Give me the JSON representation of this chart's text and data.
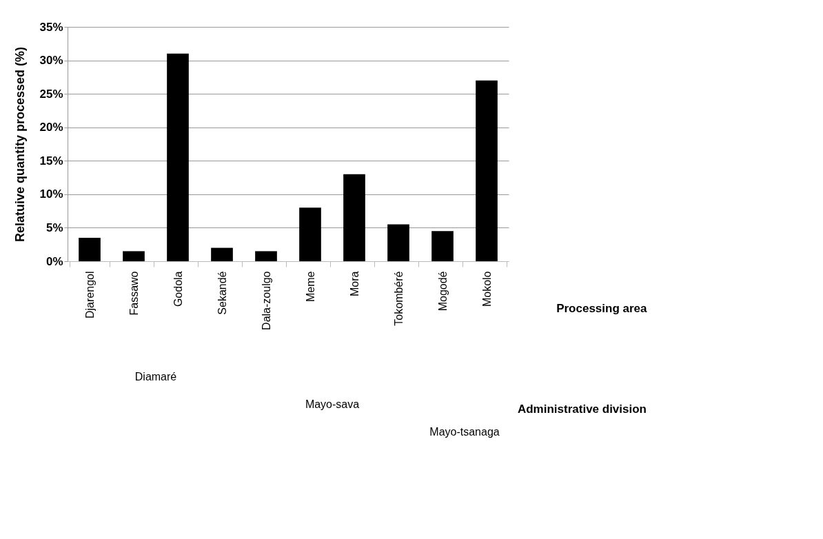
{
  "chart_data": {
    "type": "bar",
    "ylabel": "Relatuive quantity processed (%)",
    "xlabel": "Processing area",
    "categories": [
      "Djarengol",
      "Fassawo",
      "Godola",
      "Sekandé",
      "Dala-zoulgo",
      "Meme",
      "Mora",
      "Tokombéré",
      "Mogodé",
      "Mokolo"
    ],
    "values": [
      3.5,
      1.5,
      31,
      2,
      1.5,
      8,
      13,
      5.5,
      4.5,
      27
    ],
    "color": "#000000",
    "ylim": [
      0,
      35
    ],
    "yticks": [
      {
        "value": 0,
        "label": "0%"
      },
      {
        "value": 5,
        "label": "5%"
      },
      {
        "value": 10,
        "label": "10%"
      },
      {
        "value": 15,
        "label": "15%"
      },
      {
        "value": 20,
        "label": "20%"
      },
      {
        "value": 25,
        "label": "25%"
      },
      {
        "value": 30,
        "label": "30%"
      },
      {
        "value": 35,
        "label": "35%"
      }
    ],
    "grid": "y",
    "annotations": [
      "Diamaré",
      "Mayo-sava",
      "Mayo-tsanaga",
      "Administrative division"
    ]
  }
}
